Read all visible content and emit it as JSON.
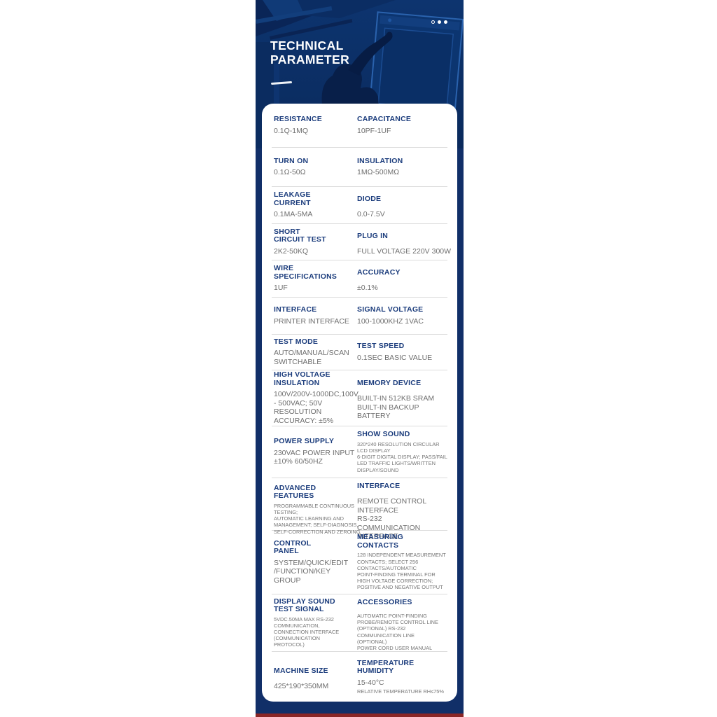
{
  "header": {
    "title_line1": "TECHNICAL",
    "title_line2": "PARAMETER",
    "dots": [
      "hollow",
      "solid",
      "solid"
    ]
  },
  "colors": {
    "column_bg": "#112f68",
    "label_text": "#1b3c7c",
    "value_text": "#6e6e6e",
    "separator": "#dcdcdc",
    "card_bg": "#ffffff",
    "bottom_accent": "#8a2626",
    "title_text": "#ffffff"
  },
  "spec_rows": [
    {
      "left": {
        "label": [
          "RESISTANCE"
        ],
        "value": [
          "0.1Q-1MQ"
        ],
        "small": false
      },
      "right": {
        "label": [
          "CAPACITANCE"
        ],
        "value": [
          "10PF-1UF"
        ],
        "small": false
      }
    },
    {
      "left": {
        "label": [
          "TURN ON"
        ],
        "value": [
          "0.1Ω-50Ω"
        ],
        "small": false
      },
      "right": {
        "label": [
          "INSULATION"
        ],
        "value": [
          "1MΩ-500MΩ"
        ],
        "small": false
      }
    },
    {
      "left": {
        "label": [
          "LEAKAGE",
          "CURRENT"
        ],
        "value": [
          "0.1MA-5MA"
        ],
        "small": false
      },
      "right": {
        "label": [
          "DIODE"
        ],
        "value": [
          "0.0-7.5V"
        ],
        "small": false
      }
    },
    {
      "left": {
        "label": [
          "SHORT",
          "CIRCUIT TEST"
        ],
        "value": [
          "2K2-50KQ"
        ],
        "small": false
      },
      "right": {
        "label": [
          "PLUG IN"
        ],
        "value": [
          "FULL VOLTAGE 220V  300W"
        ],
        "small": false
      }
    },
    {
      "left": {
        "label": [
          "WIRE",
          "SPECIFICATIONS"
        ],
        "value": [
          "1UF"
        ],
        "small": false
      },
      "right": {
        "label": [
          "ACCURACY"
        ],
        "value": [
          "±0.1%"
        ],
        "small": false
      }
    },
    {
      "left": {
        "label": [
          "INTERFACE"
        ],
        "value": [
          "PRINTER INTERFACE"
        ],
        "small": false
      },
      "right": {
        "label": [
          "SIGNAL VOLTAGE"
        ],
        "value": [
          "100-1000KHZ 1VAC"
        ],
        "small": false
      }
    },
    {
      "left": {
        "label": [
          "TEST MODE"
        ],
        "value": [
          "AUTO/MANUAL/SCAN",
          "SWITCHABLE"
        ],
        "small": false
      },
      "right": {
        "label": [
          "TEST SPEED"
        ],
        "value": [
          "0.1SEC BASIC VALUE"
        ],
        "small": false
      }
    },
    {
      "left": {
        "label": [
          "HIGH VOLTAGE",
          "INSULATION"
        ],
        "value": [
          "100V/200V-1000DC,100V",
          "- 500VAC;  50V",
          "RESOLUTION",
          "ACCURACY: ±5%"
        ],
        "small": false
      },
      "right": {
        "label": [
          "MEMORY DEVICE"
        ],
        "value": [
          "BUILT-IN 512KB SRAM",
          "BUILT-IN BACKUP",
          "BATTERY"
        ],
        "small": false
      }
    },
    {
      "left": {
        "label": [
          "POWER SUPPLY"
        ],
        "value": [
          "230VAC POWER INPUT",
          "±10% 60/50HZ"
        ],
        "small": false
      },
      "right": {
        "label": [
          "SHOW SOUND"
        ],
        "value": [
          "320*240 RESOLUTION CIRCULAR",
          "LCD DISPLAY",
          "6-DIGIT DIGITAL DISPLAY; PASS/FAIL",
          "LED TRAFFIC LIGHTS/WRITTEN",
          "DISPLAY/SOUND"
        ],
        "small": true
      }
    },
    {
      "left": {
        "label": [
          "ADVANCED",
          "FEATURES"
        ],
        "value": [
          "PROGRAMMABLE CONTINUOUS",
          "TESTING;",
          "AUTOMATIC LEARNING AND",
          "MANAGEMENT; SELF-DIAGNOSIS,",
          "SELF-CORRECTION AND ZEROING"
        ],
        "small": true
      },
      "right": {
        "label": [
          "INTERFACE"
        ],
        "value": [
          "REMOTE CONTROL",
          "INTERFACE",
          "RS-232",
          "COMMUNICATION",
          "INTERFACE"
        ],
        "small": false
      }
    },
    {
      "left": {
        "label": [
          "CONTROL",
          "PANEL"
        ],
        "value": [
          "SYSTEM/QUICK/EDIT",
          "/FUNCTION/KEY",
          "GROUP"
        ],
        "small": false
      },
      "right": {
        "label": [
          "MEASURING",
          "CONTACTS"
        ],
        "value": [
          "128 INDEPENDENT MEASUREMENT",
          "CONTACTS; SELECT 256",
          "CONTACTS/AUTOMATIC",
          "POINT-FINDING TERMINAL FOR",
          "HIGH VOLTAGE CORRECTION;",
          "POSITIVE AND NEGATIVE OUTPUT"
        ],
        "small": true
      }
    },
    {
      "left": {
        "label": [
          "DISPLAY SOUND",
          "TEST SIGNAL"
        ],
        "value": [
          "5VDC.50MA MAX RS-232",
          "COMMUNICATION,",
          "CONNECTION INTERFACE",
          "(COMMUNICATION",
          "PROTOCOL)"
        ],
        "small": true
      },
      "right": {
        "label": [
          "ACCESSORIES"
        ],
        "value": [
          "AUTOMATIC POINT-FINDING",
          "PROBE/REMOTE CONTROL LINE",
          "(OPTIONAL) RS-232",
          "COMMUNICATION LINE",
          "(OPTIONAL)",
          "POWER CORD USER MANUAL"
        ],
        "small": true
      }
    },
    {
      "left": {
        "label": [
          "MACHINE SIZE"
        ],
        "value": [
          "425*190*350MM"
        ],
        "small": false
      },
      "right": {
        "label": [
          "TEMPERATURE",
          "HUMIDITY"
        ],
        "value": [
          "15-40°C"
        ],
        "small": false,
        "note": [
          "RELATIVE TEMPERATURE RH≤75%"
        ]
      }
    }
  ]
}
